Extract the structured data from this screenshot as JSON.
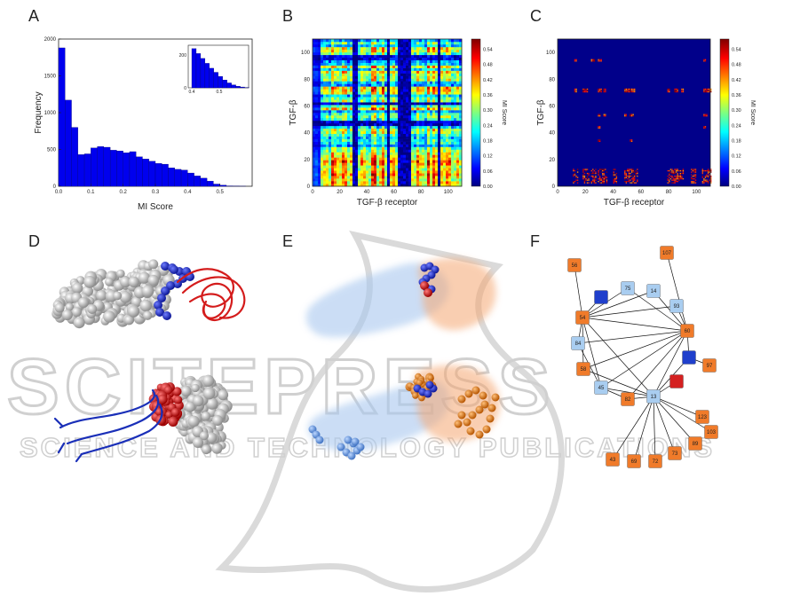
{
  "panels": {
    "A": "A",
    "B": "B",
    "C": "C",
    "D": "D",
    "E": "E",
    "F": "F"
  },
  "watermark": {
    "line1": "SCITEPRESS",
    "line2": "SCIENCE AND TECHNOLOGY PUBLICATIONS"
  },
  "colors": {
    "hist_bar": "#0000ee",
    "red": "#d42020",
    "blue": "#1f3fcc",
    "orange": "#f07b2a",
    "light_blue": "#a9cdf0"
  },
  "chart_data": [
    {
      "type": "bar",
      "panel": "A",
      "title": "",
      "xlabel": "MI Score",
      "ylabel": "Frequency",
      "xlim": [
        0,
        0.6
      ],
      "ylim": [
        0,
        2000
      ],
      "xticks": [
        "0.0",
        "0.1",
        "0.2",
        "0.3",
        "0.4",
        "0.5"
      ],
      "yticks": [
        "0",
        "500",
        "1000",
        "1500",
        "2000"
      ],
      "bin_width": 0.02,
      "values": [
        1880,
        1170,
        800,
        430,
        440,
        520,
        540,
        530,
        490,
        480,
        455,
        470,
        400,
        370,
        340,
        310,
        300,
        250,
        230,
        220,
        180,
        140,
        110,
        70,
        30,
        15,
        5,
        2,
        1
      ],
      "inset": {
        "xlim": [
          0.4,
          0.6
        ],
        "ylim": [
          0,
          250
        ],
        "xticks": [
          "0.4",
          "0.5"
        ],
        "yticks": [
          "0",
          "200"
        ],
        "values": [
          240,
          210,
          180,
          150,
          120,
          95,
          70,
          48,
          30,
          18,
          10,
          5,
          2
        ]
      }
    },
    {
      "type": "heatmap",
      "panel": "B",
      "xlabel": "TGF-β receptor",
      "ylabel": "TGF-β",
      "xlim": [
        0,
        110
      ],
      "ylim": [
        0,
        110
      ],
      "xticks": [
        "0",
        "20",
        "40",
        "60",
        "80",
        "100"
      ],
      "yticks": [
        "0",
        "20",
        "40",
        "60",
        "80",
        "100"
      ],
      "colorbar_label": "MI Score",
      "colorbar_ticks": [
        "0.00",
        "0.06",
        "0.12",
        "0.18",
        "0.24",
        "0.30",
        "0.36",
        "0.42",
        "0.48",
        "0.54"
      ],
      "description_value_range": [
        0,
        0.58
      ]
    },
    {
      "type": "heatmap",
      "panel": "C",
      "xlabel": "TGF-β receptor",
      "ylabel": "TGF-β",
      "xlim": [
        0,
        110
      ],
      "ylim": [
        0,
        110
      ],
      "xticks": [
        "0",
        "20",
        "40",
        "60",
        "80",
        "100"
      ],
      "yticks": [
        "0",
        "20",
        "40",
        "60",
        "80",
        "100"
      ],
      "colorbar_label": "MI Score",
      "colorbar_ticks": [
        "0.00",
        "0.06",
        "0.12",
        "0.18",
        "0.24",
        "0.30",
        "0.36",
        "0.42",
        "0.48",
        "0.54"
      ]
    }
  ],
  "network": {
    "nodes": [
      {
        "id": "n56",
        "label": "56",
        "color": "orange"
      },
      {
        "id": "n107",
        "label": "107",
        "color": "orange"
      },
      {
        "id": "n75",
        "label": "75",
        "color": "light_blue"
      },
      {
        "id": "n14",
        "label": "14",
        "color": "light_blue"
      },
      {
        "id": "nb1",
        "label": "",
        "color": "blue"
      },
      {
        "id": "n93",
        "label": "93",
        "color": "light_blue"
      },
      {
        "id": "n54",
        "label": "54",
        "color": "orange"
      },
      {
        "id": "n60",
        "label": "60",
        "color": "orange"
      },
      {
        "id": "n84",
        "label": "84",
        "color": "light_blue"
      },
      {
        "id": "nb2",
        "label": "",
        "color": "blue"
      },
      {
        "id": "n58",
        "label": "58",
        "color": "orange"
      },
      {
        "id": "n97",
        "label": "97",
        "color": "orange"
      },
      {
        "id": "n45",
        "label": "45",
        "color": "light_blue"
      },
      {
        "id": "n82",
        "label": "82",
        "color": "orange"
      },
      {
        "id": "n13",
        "label": "13",
        "color": "light_blue"
      },
      {
        "id": "nr",
        "label": "",
        "color": "red"
      },
      {
        "id": "n123",
        "label": "123",
        "color": "orange"
      },
      {
        "id": "n103",
        "label": "103",
        "color": "orange"
      },
      {
        "id": "n89",
        "label": "89",
        "color": "orange"
      },
      {
        "id": "n73",
        "label": "73",
        "color": "orange"
      },
      {
        "id": "n72",
        "label": "72",
        "color": "orange"
      },
      {
        "id": "n69",
        "label": "69",
        "color": "orange"
      },
      {
        "id": "n43",
        "label": "43",
        "color": "orange"
      }
    ],
    "edges": [
      [
        "nb1",
        "n54"
      ],
      [
        "n75",
        "n54"
      ],
      [
        "n14",
        "n54"
      ],
      [
        "n93",
        "n54"
      ],
      [
        "n14",
        "n60"
      ],
      [
        "n93",
        "n60"
      ],
      [
        "n75",
        "n60"
      ],
      [
        "n54",
        "n60"
      ],
      [
        "n54",
        "n84"
      ],
      [
        "n54",
        "n58"
      ],
      [
        "n54",
        "n45"
      ],
      [
        "n54",
        "n13"
      ],
      [
        "n60",
        "n82"
      ],
      [
        "n60",
        "n13"
      ],
      [
        "n60",
        "n45"
      ],
      [
        "n60",
        "nb2"
      ],
      [
        "n84",
        "n60"
      ],
      [
        "n58",
        "n60"
      ],
      [
        "nb2",
        "n13"
      ],
      [
        "nr",
        "n13"
      ],
      [
        "n13",
        "n45"
      ],
      [
        "n13",
        "n82"
      ],
      [
        "n13",
        "n123"
      ],
      [
        "n13",
        "n103"
      ],
      [
        "n13",
        "n89"
      ],
      [
        "n13",
        "n73"
      ],
      [
        "n13",
        "n72"
      ],
      [
        "n13",
        "n69"
      ],
      [
        "n13",
        "n43"
      ],
      [
        "n45",
        "n82"
      ],
      [
        "n84",
        "n45"
      ],
      [
        "n58",
        "n13"
      ],
      [
        "nb2",
        "n97"
      ],
      [
        "n56",
        "n54"
      ],
      [
        "n107",
        "n60"
      ]
    ]
  }
}
